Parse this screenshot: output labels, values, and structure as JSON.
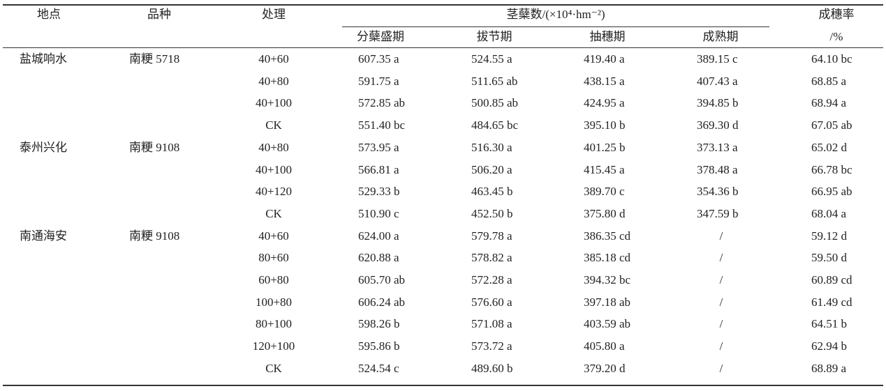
{
  "table": {
    "header": {
      "location": "地点",
      "variety": "品种",
      "treatment": "处理",
      "tiller_group": "茎蘖数/(×10⁴·hm⁻²)",
      "stages": [
        "分蘖盛期",
        "拔节期",
        "抽穗期",
        "成熟期"
      ],
      "rate": [
        "成穗率",
        "/%"
      ]
    },
    "groups": [
      {
        "location": "盐城响水",
        "variety": "南粳 5718",
        "rows": [
          [
            "40+60",
            "607.35 a",
            "524.55 a",
            "419.40 a",
            "389.15 c",
            "64.10 bc"
          ],
          [
            "40+80",
            "591.75 a",
            "511.65 ab",
            "438.15 a",
            "407.43 a",
            "68.85 a"
          ],
          [
            "40+100",
            "572.85 ab",
            "500.85 ab",
            "424.95 a",
            "394.85 b",
            "68.94 a"
          ],
          [
            "CK",
            "551.40 bc",
            "484.65 bc",
            "395.10 b",
            "369.30 d",
            "67.05 ab"
          ]
        ]
      },
      {
        "location": "泰州兴化",
        "variety": "南粳 9108",
        "rows": [
          [
            "40+80",
            "573.95 a",
            "516.30 a",
            "401.25 b",
            "373.13 a",
            "65.02 d"
          ],
          [
            "40+100",
            "566.81 a",
            "506.20 a",
            "415.45 a",
            "378.48 a",
            "66.78 bc"
          ],
          [
            "40+120",
            "529.33 b",
            "463.45 b",
            "389.70 c",
            "354.36 b",
            "66.95 ab"
          ],
          [
            "CK",
            "510.90 c",
            "452.50 b",
            "375.80 d",
            "347.59 b",
            "68.04 a"
          ]
        ]
      },
      {
        "location": "南通海安",
        "variety": "南粳 9108",
        "rows": [
          [
            "40+60",
            "624.00 a",
            "579.78 a",
            "386.35 cd",
            "/",
            "59.12 d"
          ],
          [
            "80+60",
            "620.88 a",
            "578.82 a",
            "385.18 cd",
            "/",
            "59.50 d"
          ],
          [
            "60+80",
            "605.70 ab",
            "572.28 a",
            "394.32 bc",
            "/",
            "60.89 cd"
          ],
          [
            "100+80",
            "606.24 ab",
            "576.60 a",
            "397.18 ab",
            "/",
            "61.49 cd"
          ],
          [
            "80+100",
            "598.26 b",
            "571.08 a",
            "403.59 ab",
            "/",
            "64.51 b"
          ],
          [
            "120+100",
            "595.86 b",
            "573.72 a",
            "405.80 a",
            "/",
            "62.94 b"
          ],
          [
            "CK",
            "524.54 c",
            "489.60 b",
            "379.20 d",
            "/",
            "68.89 a"
          ]
        ]
      }
    ]
  }
}
